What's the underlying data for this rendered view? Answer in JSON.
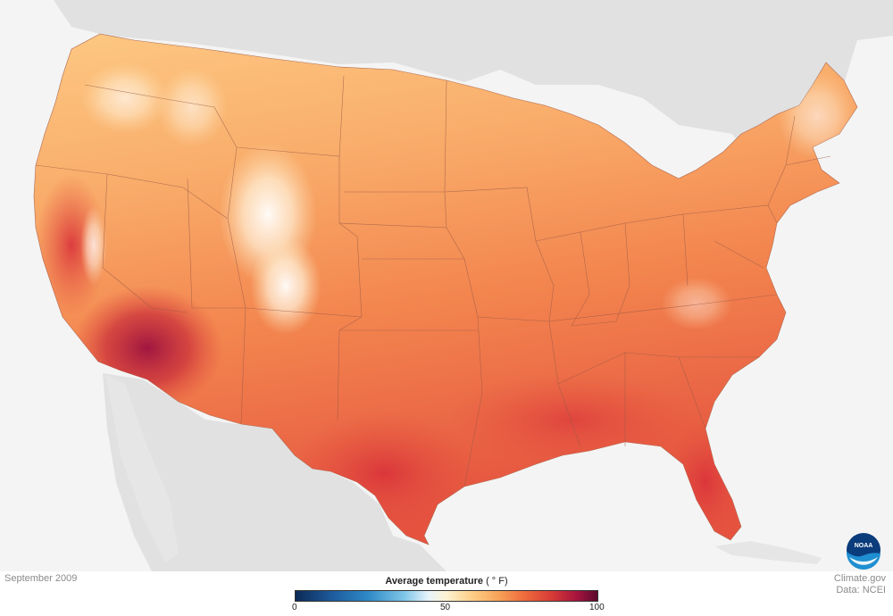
{
  "date_label": "September 2009",
  "legend": {
    "title": "Average temperature",
    "unit": "( ° F)",
    "ticks": [
      "0",
      "50",
      "100"
    ],
    "range": [
      0,
      100
    ],
    "colormap": [
      "#0c2a55",
      "#1e5a9c",
      "#2e8ac6",
      "#7fc6e8",
      "#e7f3fb",
      "#fdf3d2",
      "#fdd08a",
      "#f8a45a",
      "#ee6a3c",
      "#d63a36",
      "#a8143e",
      "#5c0b2f"
    ]
  },
  "credits": {
    "source": "Climate.gov",
    "data": "Data: NCEI"
  },
  "logo": {
    "text": "NOAA",
    "colors": [
      "#0b3c7c",
      "#1f8fd1"
    ]
  }
}
